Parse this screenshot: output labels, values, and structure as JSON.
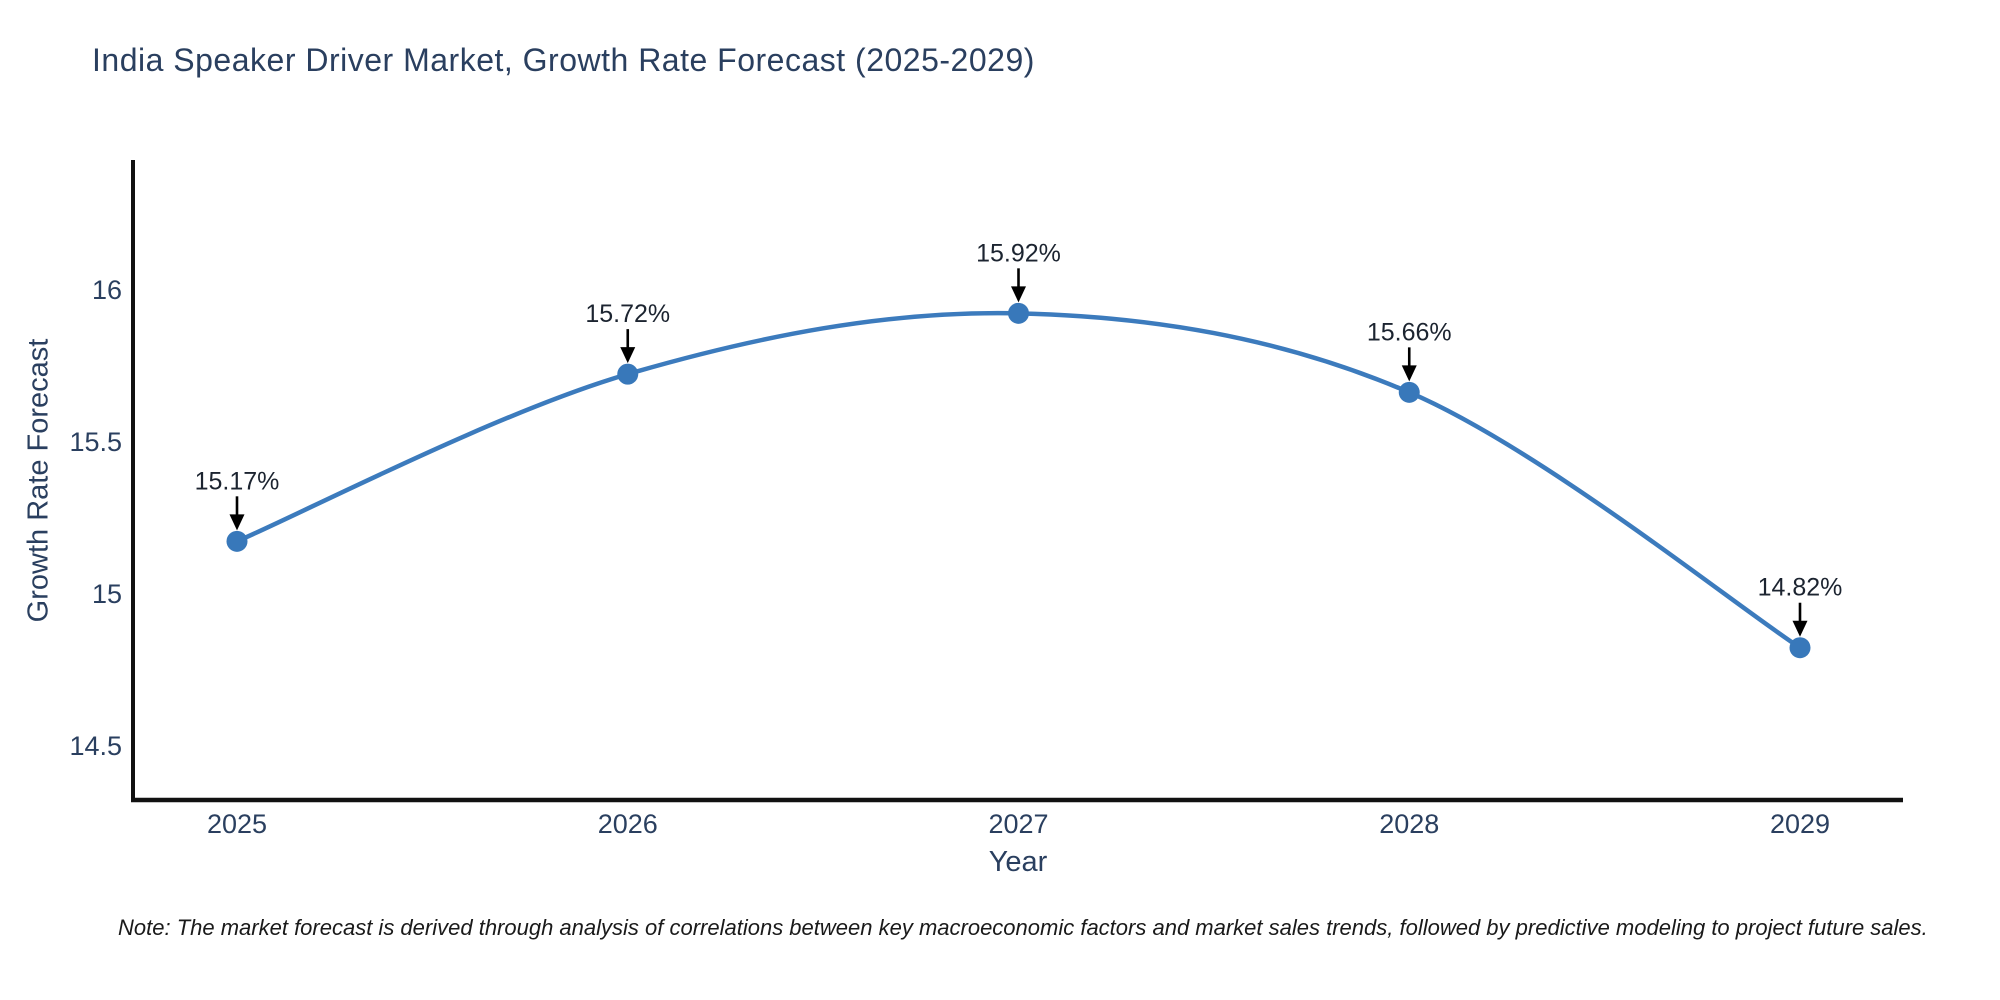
{
  "title": "India Speaker Driver Market, Growth Rate Forecast (2025-2029)",
  "note": "Note: The market forecast is derived through analysis of correlations between key macroeconomic factors and market sales trends, followed by predictive modeling to project future sales.",
  "chart_data": {
    "type": "line",
    "title": "India Speaker Driver Market, Growth Rate Forecast (2025-2029)",
    "x": [
      "2025",
      "2026",
      "2027",
      "2028",
      "2029"
    ],
    "series": [
      {
        "name": "Growth Rate Forecast",
        "values": [
          15.17,
          15.72,
          15.92,
          15.66,
          14.82
        ],
        "point_labels": [
          "15.17%",
          "15.72%",
          "15.92%",
          "15.66%",
          "14.82%"
        ]
      }
    ],
    "xlabel": "Year",
    "ylabel": "Growth Rate Forecast",
    "ytick_labels": [
      "14.5",
      "15",
      "15.5",
      "16"
    ],
    "ytick_values": [
      14.5,
      15.0,
      15.5,
      16.0
    ],
    "ylim": [
      14.32,
      16.42
    ],
    "grid": false,
    "legend": "none",
    "line_shape": "spline",
    "annotation_style": "arrow-down",
    "colors": {
      "line": "#3c7bbd",
      "marker": "#3878ba",
      "axis": "#111111",
      "tick_text": "#2a3f5f",
      "title_text": "#2a3f5f",
      "annotation_text": "#1c2430",
      "arrow": "#000000",
      "background": "#ffffff"
    }
  }
}
